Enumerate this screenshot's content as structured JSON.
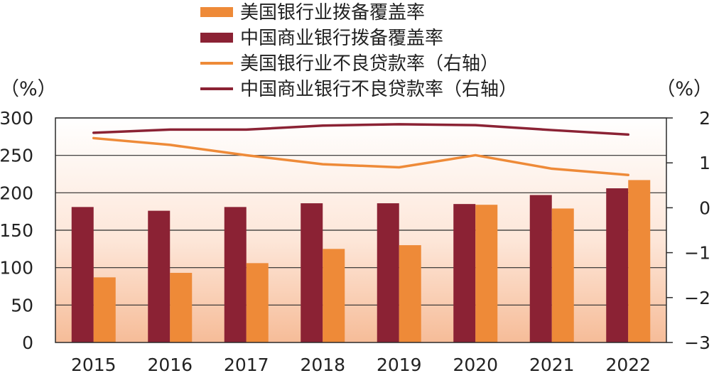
{
  "chart_data": {
    "type": "bar",
    "categories": [
      "2015",
      "2016",
      "2017",
      "2018",
      "2019",
      "2020",
      "2021",
      "2022"
    ],
    "series": [
      {
        "name": "美国银行业拨备覆盖率",
        "kind": "bar",
        "axis": "left",
        "color": "#ee8a38",
        "values": [
          87,
          93,
          106,
          125,
          130,
          184,
          179,
          217
        ]
      },
      {
        "name": "中国商业银行拨备覆盖率",
        "kind": "bar",
        "axis": "left",
        "color": "#8b2234",
        "values": [
          181,
          176,
          181,
          186,
          186,
          185,
          197,
          206
        ]
      },
      {
        "name": "美国银行业不良贷款率（右轴）",
        "kind": "line",
        "axis": "right",
        "color": "#ee8a38",
        "values": [
          1.55,
          1.4,
          1.17,
          0.97,
          0.9,
          1.17,
          0.87,
          0.73
        ]
      },
      {
        "name": "中国商业银行不良贷款率（右轴）",
        "kind": "line",
        "axis": "right",
        "color": "#8b2234",
        "values": [
          1.67,
          1.74,
          1.74,
          1.83,
          1.86,
          1.84,
          1.73,
          1.63
        ]
      }
    ],
    "left_axis": {
      "unit": "（%）",
      "ylim": [
        0,
        300
      ],
      "ticks": [
        "0",
        "50",
        "100",
        "150",
        "200",
        "250",
        "300"
      ]
    },
    "right_axis": {
      "unit": "（%）",
      "ylim": [
        -3,
        2
      ],
      "ticks": [
        "−3",
        "−2",
        "−1",
        "0",
        "1",
        "2"
      ]
    },
    "grid": true,
    "legend_position": "top",
    "background": "gradient-white-to-peach"
  }
}
